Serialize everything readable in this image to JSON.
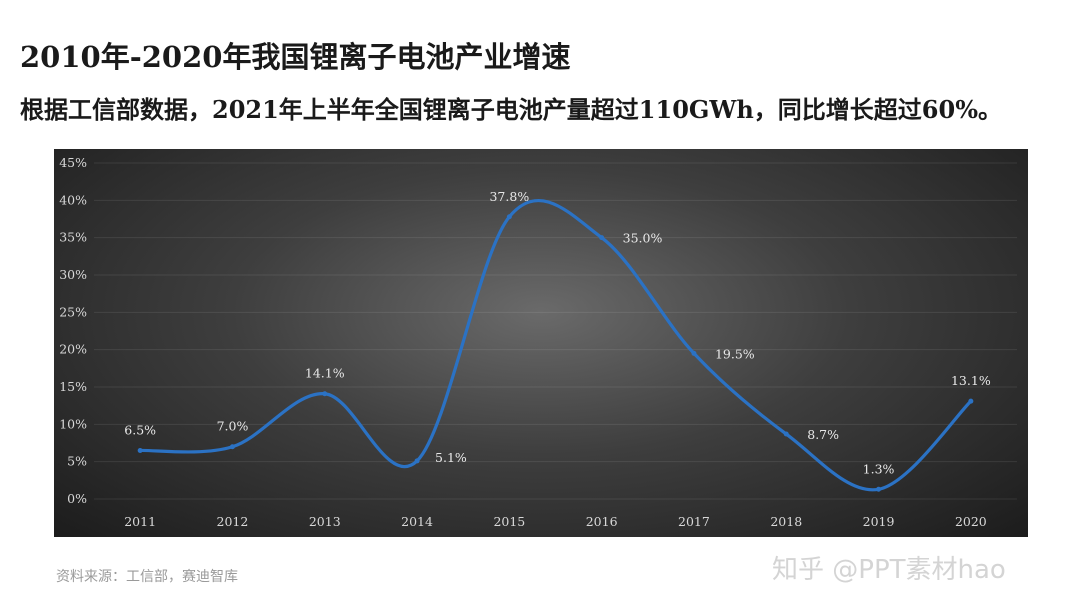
{
  "title": "2010年-2020年我国锂离子电池产业增速",
  "subtitle": "根据工信部数据，2021年上半年全国锂离子电池产量超过110GWh，同比增长超过60%。",
  "source": "资料来源：工信部，赛迪智库",
  "watermark": "知乎 @PPT素材hao",
  "colors": {
    "line": "#2b72c4",
    "panel_dark": "#1c1c1c",
    "label": "#e8e8e8"
  },
  "chart_data": {
    "type": "line",
    "smooth": true,
    "categories": [
      "2011",
      "2012",
      "2013",
      "2014",
      "2015",
      "2016",
      "2017",
      "2018",
      "2019",
      "2020"
    ],
    "values": [
      6.5,
      7.0,
      14.1,
      5.1,
      37.8,
      35.0,
      19.5,
      8.7,
      1.3,
      13.1
    ],
    "data_labels": [
      "6.5%",
      "7.0%",
      "14.1%",
      "5.1%",
      "37.8%",
      "35.0%",
      "19.5%",
      "8.7%",
      "1.3%",
      "13.1%"
    ],
    "ylim": [
      0,
      45
    ],
    "yticks": [
      0,
      5,
      10,
      15,
      20,
      25,
      30,
      35,
      40,
      45
    ],
    "ytick_labels": [
      "0%",
      "5%",
      "10%",
      "15%",
      "20%",
      "25%",
      "30%",
      "35%",
      "40%",
      "45%"
    ],
    "grid": true,
    "legend": "none",
    "xlabel": "",
    "ylabel": ""
  }
}
